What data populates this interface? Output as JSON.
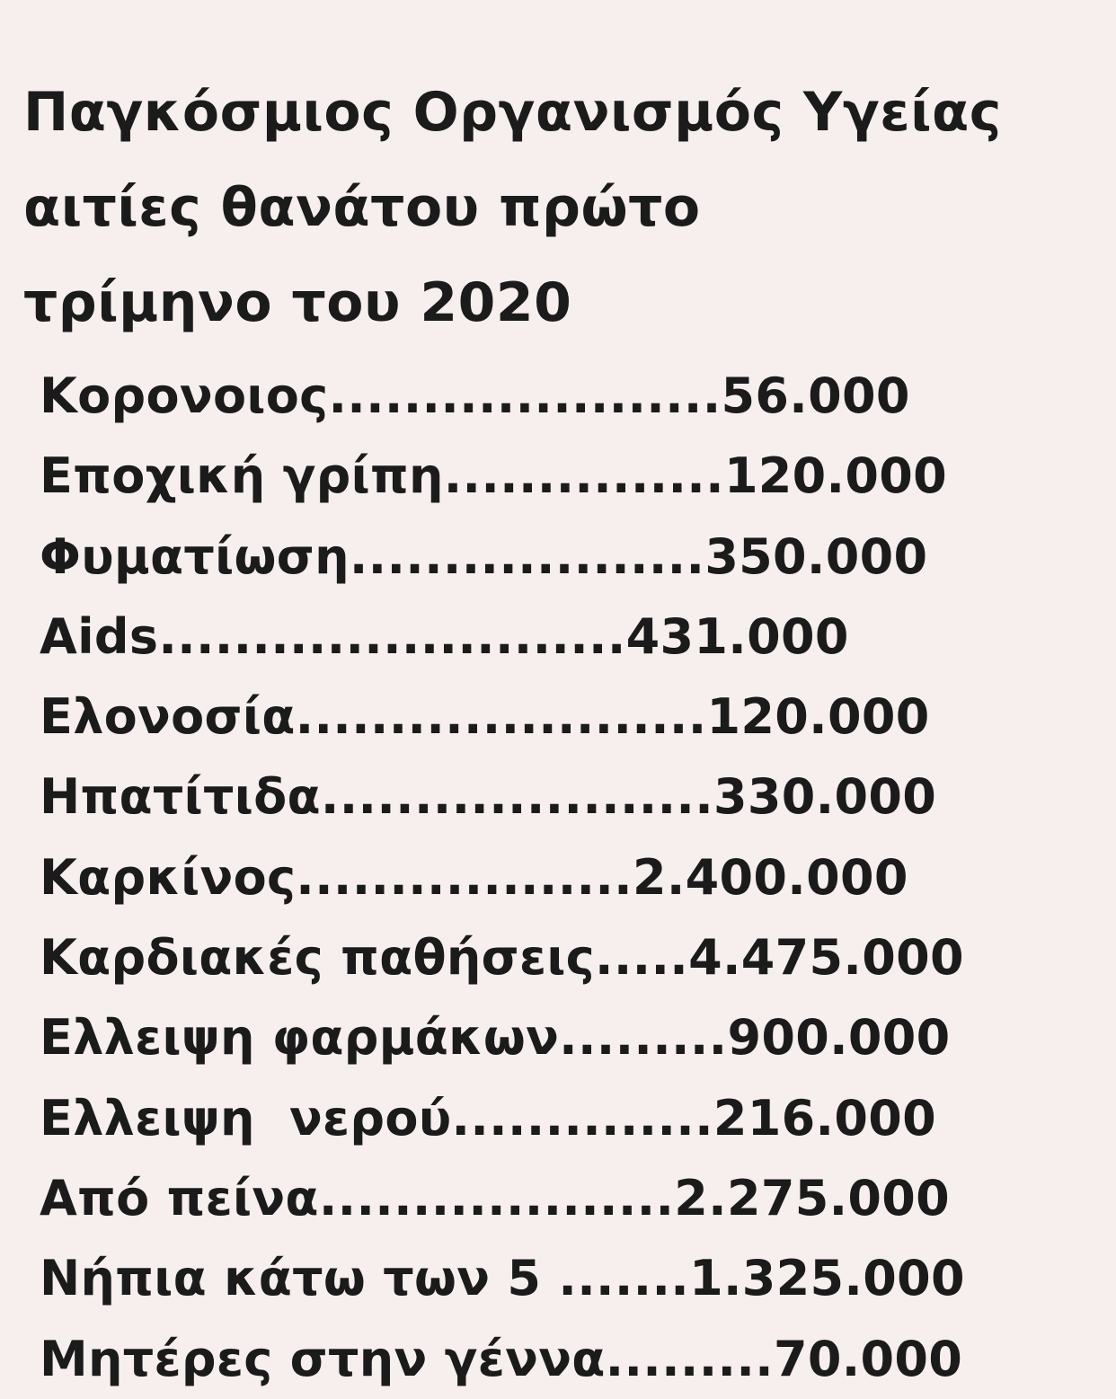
{
  "title": {
    "lines": [
      "Παγκόσμιος Οργανισμός Υγείας",
      "αιτίες θανάτου πρώτο",
      "τρίμηνο του 2020"
    ]
  },
  "rows": [
    {
      "label": "Κορονοιος",
      "leader": ".....................",
      "value": "56.000"
    },
    {
      "label": "Εποχική γρίπη",
      "leader": "...............",
      "value": "120.000"
    },
    {
      "label": "Φυματίωση",
      "leader": "...................",
      "value": "350.000"
    },
    {
      "label": "Aids",
      "leader": ".........................",
      "value": "431.000"
    },
    {
      "label": "Ελονοσία",
      "leader": "......................",
      "value": "120.000"
    },
    {
      "label": "Ηπατίτιδα",
      "leader": ".....................",
      "value": "330.000"
    },
    {
      "label": "Καρκίνος",
      "leader": "..................",
      "value": "2.400.000"
    },
    {
      "label": "Καρδιακές παθήσεις",
      "leader": ".....",
      "value": "4.475.000"
    },
    {
      "label": "Ελλειψη φαρμάκων",
      "leader": ".........",
      "value": "900.000"
    },
    {
      "label": "Ελλειψη  νερού",
      "leader": "..............",
      "value": "216.000"
    },
    {
      "label": "Από πείνα",
      "leader": "...................",
      "value": "2.275.000"
    },
    {
      "label": "Νήπια κάτω των 5",
      "leader": " .......",
      "value": "1.325.000"
    },
    {
      "label": "Μητέρες στην γέννα",
      "leader": ".........",
      "value": "70.000"
    }
  ]
}
